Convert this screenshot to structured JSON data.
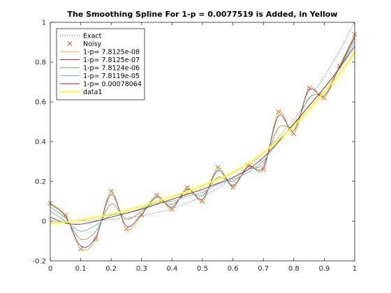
{
  "chart_data": {
    "type": "line",
    "title": "The Smoothing Spline For 1-p = 0.0077519 is Added, in Yellow",
    "xlabel": "",
    "ylabel": "",
    "xlim": [
      0,
      1
    ],
    "ylim": [
      -0.2,
      1
    ],
    "xticks": [
      "0",
      "0.1",
      "0.2",
      "0.3",
      "0.4",
      "0.5",
      "0.6",
      "0.7",
      "0.8",
      "0.9",
      "1"
    ],
    "yticks": [
      "-0.2",
      "0",
      "0.2",
      "0.4",
      "0.6",
      "0.8",
      "1"
    ],
    "grid": false,
    "legend_position": "top-left",
    "series": [
      {
        "name": "Exact",
        "color": "#0072BD",
        "style": "dotted",
        "marker": "none",
        "x": [
          0,
          0.05,
          0.1,
          0.15,
          0.2,
          0.25,
          0.3,
          0.35,
          0.4,
          0.45,
          0.5,
          0.55,
          0.6,
          0.65,
          0.7,
          0.75,
          0.8,
          0.85,
          0.9,
          0.95,
          1
        ],
        "y": [
          0.0,
          0.0,
          0.001,
          0.004,
          0.008,
          0.016,
          0.027,
          0.043,
          0.064,
          0.091,
          0.125,
          0.166,
          0.216,
          0.275,
          0.343,
          0.422,
          0.512,
          0.614,
          0.729,
          0.857,
          1.0
        ]
      },
      {
        "name": "Noisy",
        "color": "#D95319",
        "style": "none",
        "marker": "x",
        "x": [
          0,
          0.05,
          0.1,
          0.15,
          0.2,
          0.25,
          0.3,
          0.35,
          0.4,
          0.45,
          0.5,
          0.55,
          0.6,
          0.65,
          0.7,
          0.75,
          0.8,
          0.85,
          0.9,
          0.95,
          1
        ],
        "y": [
          0.09,
          0.03,
          -0.14,
          -0.09,
          0.15,
          -0.04,
          0.03,
          0.13,
          0.06,
          0.17,
          0.1,
          0.27,
          0.17,
          0.28,
          0.26,
          0.55,
          0.44,
          0.67,
          0.62,
          0.78,
          0.94
        ]
      },
      {
        "name": "1-p= 7.8125e-08",
        "color": "#EDB120",
        "style": "solid",
        "marker": "none",
        "x": [
          0,
          0.05,
          0.1,
          0.15,
          0.2,
          0.25,
          0.3,
          0.35,
          0.4,
          0.45,
          0.5,
          0.55,
          0.6,
          0.65,
          0.7,
          0.75,
          0.8,
          0.85,
          0.9,
          0.95,
          1
        ],
        "y": [
          0.09,
          0.03,
          -0.14,
          -0.09,
          0.15,
          -0.04,
          0.03,
          0.13,
          0.06,
          0.17,
          0.1,
          0.27,
          0.17,
          0.28,
          0.26,
          0.55,
          0.44,
          0.67,
          0.62,
          0.78,
          0.94
        ]
      },
      {
        "name": "1-p= 7.8125e-07",
        "color": "#7E2F8E",
        "style": "solid",
        "marker": "none",
        "x": [
          0,
          0.05,
          0.1,
          0.15,
          0.2,
          0.25,
          0.3,
          0.35,
          0.4,
          0.45,
          0.5,
          0.55,
          0.6,
          0.65,
          0.7,
          0.75,
          0.8,
          0.85,
          0.9,
          0.95,
          1
        ],
        "y": [
          0.085,
          0.025,
          -0.125,
          -0.08,
          0.135,
          -0.025,
          0.035,
          0.12,
          0.07,
          0.16,
          0.11,
          0.255,
          0.18,
          0.275,
          0.27,
          0.53,
          0.455,
          0.66,
          0.63,
          0.775,
          0.93
        ]
      },
      {
        "name": "1-p= 7.8124e-06",
        "color": "#77AC30",
        "style": "solid",
        "marker": "none",
        "x": [
          0,
          0.05,
          0.1,
          0.15,
          0.2,
          0.25,
          0.3,
          0.35,
          0.4,
          0.45,
          0.5,
          0.55,
          0.6,
          0.65,
          0.7,
          0.75,
          0.8,
          0.85,
          0.9,
          0.95,
          1
        ],
        "y": [
          0.07,
          0.015,
          -0.09,
          -0.05,
          0.085,
          0.01,
          0.05,
          0.1,
          0.085,
          0.14,
          0.13,
          0.22,
          0.2,
          0.26,
          0.29,
          0.47,
          0.48,
          0.62,
          0.65,
          0.77,
          0.92
        ]
      },
      {
        "name": "1-p= 7.8119e-05",
        "color": "#4DBEEE",
        "style": "solid",
        "marker": "none",
        "x": [
          0,
          0.05,
          0.1,
          0.15,
          0.2,
          0.25,
          0.3,
          0.35,
          0.4,
          0.45,
          0.5,
          0.55,
          0.6,
          0.65,
          0.7,
          0.75,
          0.8,
          0.85,
          0.9,
          0.95,
          1
        ],
        "y": [
          0.05,
          0.0,
          -0.05,
          -0.02,
          0.03,
          0.04,
          0.065,
          0.09,
          0.1,
          0.125,
          0.145,
          0.185,
          0.21,
          0.245,
          0.305,
          0.4,
          0.49,
          0.58,
          0.67,
          0.77,
          0.9
        ]
      },
      {
        "name": "1-p= 0.00078064",
        "color": "#A2142F",
        "style": "solid",
        "marker": "none",
        "x": [
          0,
          0.05,
          0.1,
          0.15,
          0.2,
          0.25,
          0.3,
          0.35,
          0.4,
          0.45,
          0.5,
          0.55,
          0.6,
          0.65,
          0.7,
          0.75,
          0.8,
          0.85,
          0.9,
          0.95,
          1
        ],
        "y": [
          0.02,
          -0.01,
          -0.015,
          0.0,
          0.02,
          0.04,
          0.06,
          0.085,
          0.11,
          0.135,
          0.16,
          0.19,
          0.22,
          0.26,
          0.32,
          0.4,
          0.49,
          0.58,
          0.67,
          0.77,
          0.88
        ]
      },
      {
        "name": "data1",
        "color": "#FFFF00",
        "style": "solid",
        "width": 2,
        "marker": "none",
        "x": [
          0,
          0.05,
          0.1,
          0.15,
          0.2,
          0.25,
          0.3,
          0.35,
          0.4,
          0.45,
          0.5,
          0.55,
          0.6,
          0.65,
          0.7,
          0.75,
          0.8,
          0.85,
          0.9,
          0.95,
          1
        ],
        "y": [
          -0.01,
          -0.005,
          0.005,
          0.02,
          0.035,
          0.055,
          0.075,
          0.1,
          0.125,
          0.15,
          0.18,
          0.21,
          0.245,
          0.29,
          0.345,
          0.41,
          0.48,
          0.56,
          0.65,
          0.74,
          0.85
        ]
      }
    ]
  }
}
